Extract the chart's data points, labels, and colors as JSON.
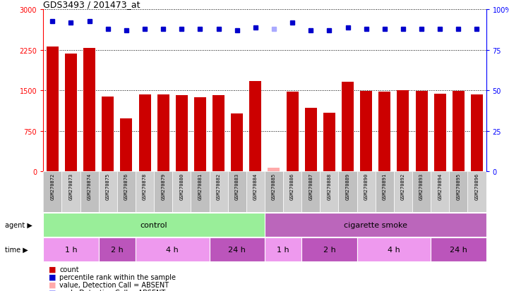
{
  "title": "GDS3493 / 201473_at",
  "samples": [
    "GSM270872",
    "GSM270873",
    "GSM270874",
    "GSM270875",
    "GSM270876",
    "GSM270878",
    "GSM270879",
    "GSM270880",
    "GSM270881",
    "GSM270882",
    "GSM270883",
    "GSM270884",
    "GSM270885",
    "GSM270886",
    "GSM270887",
    "GSM270888",
    "GSM270889",
    "GSM270890",
    "GSM270891",
    "GSM270892",
    "GSM270893",
    "GSM270894",
    "GSM270895",
    "GSM270896"
  ],
  "counts": [
    2310,
    2190,
    2290,
    1390,
    980,
    1430,
    1430,
    1420,
    1380,
    1410,
    1080,
    1680,
    75,
    1480,
    1180,
    1090,
    1660,
    1490,
    1480,
    1500,
    1490,
    1440,
    1490,
    1430
  ],
  "percentile_ranks": [
    93,
    92,
    93,
    88,
    87,
    88,
    88,
    88,
    88,
    88,
    87,
    89,
    88,
    92,
    87,
    87,
    89,
    88,
    88,
    88,
    88,
    88,
    88,
    88
  ],
  "absent_count_idx": [
    12
  ],
  "absent_rank_idx": [
    12
  ],
  "bar_color": "#cc0000",
  "percentile_color": "#0000cc",
  "absent_count_color": "#ffaaaa",
  "absent_rank_color": "#aaaaff",
  "ylim_left": [
    0,
    3000
  ],
  "ylim_right": [
    0,
    100
  ],
  "yticks_left": [
    0,
    750,
    1500,
    2250,
    3000
  ],
  "yticks_right": [
    0,
    25,
    50,
    75,
    100
  ],
  "agent_groups": [
    {
      "label": "control",
      "start": 0,
      "end": 12,
      "color": "#99ee99"
    },
    {
      "label": "cigarette smoke",
      "start": 12,
      "end": 24,
      "color": "#bb66bb"
    }
  ],
  "time_groups": [
    {
      "label": "1 h",
      "start": 0,
      "end": 3,
      "color": "#ee99ee"
    },
    {
      "label": "2 h",
      "start": 3,
      "end": 5,
      "color": "#bb55bb"
    },
    {
      "label": "4 h",
      "start": 5,
      "end": 9,
      "color": "#ee99ee"
    },
    {
      "label": "24 h",
      "start": 9,
      "end": 12,
      "color": "#bb55bb"
    },
    {
      "label": "1 h",
      "start": 12,
      "end": 14,
      "color": "#ee99ee"
    },
    {
      "label": "2 h",
      "start": 14,
      "end": 17,
      "color": "#bb55bb"
    },
    {
      "label": "4 h",
      "start": 17,
      "end": 21,
      "color": "#ee99ee"
    },
    {
      "label": "24 h",
      "start": 21,
      "end": 24,
      "color": "#bb55bb"
    }
  ],
  "legend_items": [
    {
      "label": "count",
      "color": "#cc0000"
    },
    {
      "label": "percentile rank within the sample",
      "color": "#0000cc"
    },
    {
      "label": "value, Detection Call = ABSENT",
      "color": "#ffaaaa"
    },
    {
      "label": "rank, Detection Call = ABSENT",
      "color": "#aaaaff"
    }
  ],
  "background_color": "#ffffff",
  "plot_bg_color": "#ffffff"
}
